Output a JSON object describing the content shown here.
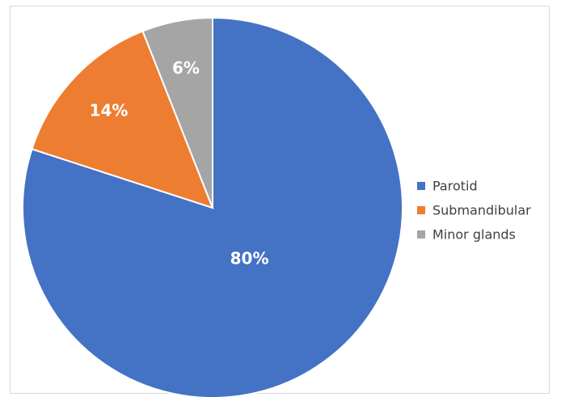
{
  "chart_data": {
    "type": "pie",
    "categories": [
      "Parotid",
      "Submandibular",
      "Minor glands"
    ],
    "values": [
      80,
      14,
      6
    ],
    "data_labels": [
      "80%",
      "14%",
      "6%"
    ],
    "colors": [
      "#4472c4",
      "#ed7d31",
      "#a5a5a5"
    ],
    "legend_position": "right",
    "start_angle": "top, clockwise"
  }
}
